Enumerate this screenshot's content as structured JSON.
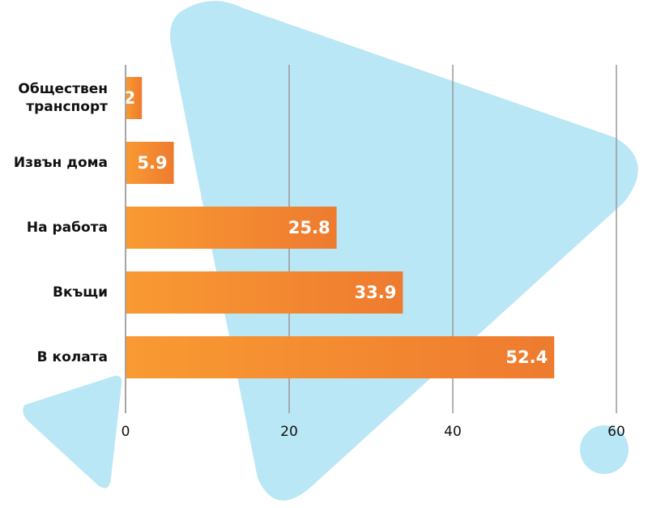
{
  "chart_data": {
    "type": "bar",
    "orientation": "horizontal",
    "categories": [
      "Обществен транспорт",
      "Извън дома",
      "На работа",
      "Вкъщи",
      "В колата"
    ],
    "values": [
      2,
      5.9,
      25.8,
      33.9,
      52.4
    ],
    "color": "#f28a2e",
    "xlim": [
      0,
      60
    ],
    "xticks": [
      0,
      20,
      40,
      60
    ],
    "grid": true
  }
}
